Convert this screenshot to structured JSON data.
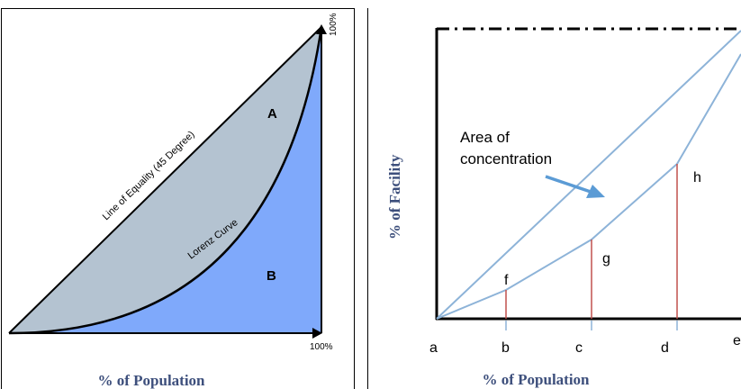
{
  "left_panel": {
    "equality_label": "Line of Equality (45 Degree)",
    "lorenz_label": "Lorenz Curve",
    "region_a": "A",
    "region_b": "B",
    "top_tick": "100%",
    "right_tick": "100%",
    "x_axis_title": "% of Population"
  },
  "right_panel": {
    "y_axis_title": "% of Facility",
    "annotation_line1": "Area of",
    "annotation_line2": "concentration",
    "x_points": [
      "a",
      "b",
      "c",
      "d",
      "e"
    ],
    "segment_labels": [
      "f",
      "g",
      "h"
    ],
    "x_axis_title": "% of Population"
  },
  "colors": {
    "gray_region": "#b4c3d1",
    "blue_region": "#7fa9fb",
    "line_blue": "#8db3d8",
    "red_drop": "#c0504d",
    "arrow_blue": "#5b9bd5",
    "title_navy": "#3d4f7c"
  }
}
